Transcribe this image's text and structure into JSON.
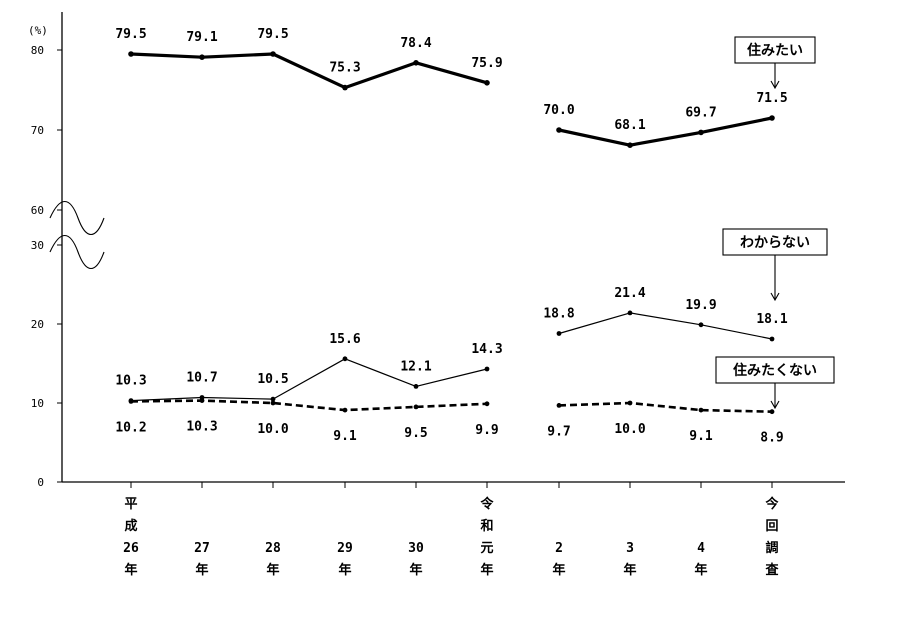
{
  "chart_data": {
    "type": "line",
    "y_unit": "(%)",
    "x_labels": [
      [
        "平",
        "成",
        "26",
        "年"
      ],
      [
        "27",
        "年"
      ],
      [
        "28",
        "年"
      ],
      [
        "29",
        "年"
      ],
      [
        "30",
        "年"
      ],
      [
        "令",
        "和",
        "元",
        "年"
      ],
      [
        "2",
        "年"
      ],
      [
        "3",
        "年"
      ],
      [
        "4",
        "年"
      ],
      [
        "今",
        "回",
        "調",
        "査"
      ]
    ],
    "y_ticks_upper": [
      "80",
      "70",
      "60"
    ],
    "y_ticks_lower": [
      "30",
      "20",
      "10",
      "0"
    ],
    "ylim_upper": [
      60,
      85
    ],
    "ylim_lower": [
      0,
      30
    ],
    "axis_break": true,
    "series_gap_after_index": 5,
    "series": [
      {
        "name": "住みたい",
        "values": [
          79.5,
          79.1,
          79.5,
          75.3,
          78.4,
          75.9,
          70.0,
          68.1,
          69.7,
          71.5
        ],
        "labels": [
          "79.5",
          "79.1",
          "79.5",
          "75.3",
          "78.4",
          "75.9",
          "70.0",
          "68.1",
          "69.7",
          "71.5"
        ],
        "style": "thick",
        "color": "#000000"
      },
      {
        "name": "わからない",
        "values": [
          10.3,
          10.7,
          10.5,
          15.6,
          12.1,
          14.3,
          18.8,
          21.4,
          19.9,
          18.1
        ],
        "labels": [
          "10.3",
          "10.7",
          "10.5",
          "15.6",
          "12.1",
          "14.3",
          "18.8",
          "21.4",
          "19.9",
          "18.1"
        ],
        "style": "thin",
        "color": "#000000"
      },
      {
        "name": "住みたくない",
        "values": [
          10.2,
          10.3,
          10.0,
          9.1,
          9.5,
          9.9,
          9.7,
          10.0,
          9.1,
          8.9
        ],
        "labels": [
          "10.2",
          "10.3",
          "10.0",
          "9.1",
          "9.5",
          "9.9",
          "9.7",
          "10.0",
          "9.1",
          "8.9"
        ],
        "style": "dashed",
        "color": "#000000"
      }
    ],
    "callouts": [
      "住みたい",
      "わからない",
      "住みたくない"
    ]
  }
}
